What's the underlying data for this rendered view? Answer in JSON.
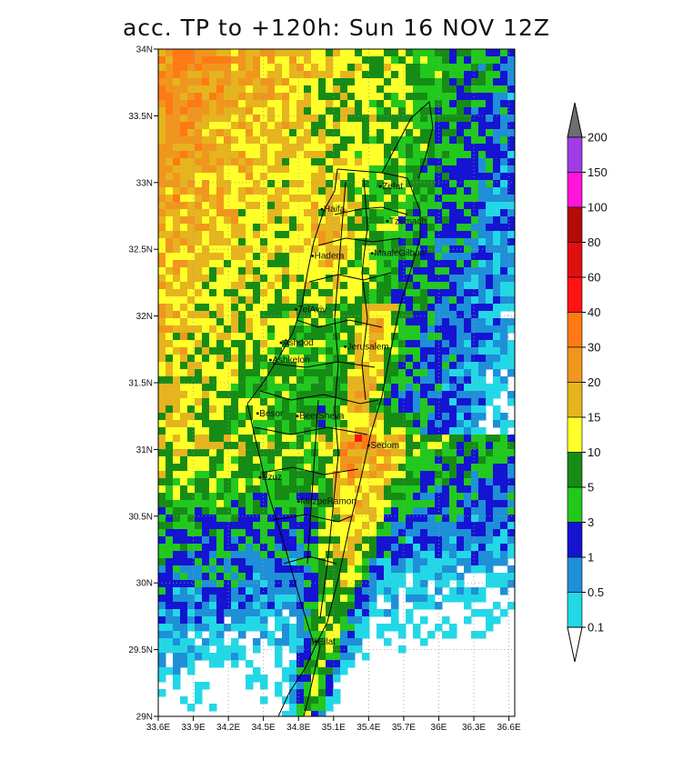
{
  "title": "acc. TP to +120h: Sun 16 NOV 12Z",
  "map": {
    "lon_range": [
      33.6,
      36.65
    ],
    "lat_range": [
      29.0,
      34.0
    ],
    "x_ticks": [
      {
        "value": 33.6,
        "label": "33.6E"
      },
      {
        "value": 33.9,
        "label": "33.9E"
      },
      {
        "value": 34.2,
        "label": "34.2E"
      },
      {
        "value": 34.5,
        "label": "34.5E"
      },
      {
        "value": 34.8,
        "label": "34.8E"
      },
      {
        "value": 35.1,
        "label": "35.1E"
      },
      {
        "value": 35.4,
        "label": "35.4E"
      },
      {
        "value": 35.7,
        "label": "35.7E"
      },
      {
        "value": 36.0,
        "label": "36E"
      },
      {
        "value": 36.3,
        "label": "36.3E"
      },
      {
        "value": 36.6,
        "label": "36.6E"
      }
    ],
    "y_ticks": [
      {
        "value": 34.0,
        "label": "34N"
      },
      {
        "value": 33.5,
        "label": "33.5N"
      },
      {
        "value": 33.0,
        "label": "33N"
      },
      {
        "value": 32.5,
        "label": "32.5N"
      },
      {
        "value": 32.0,
        "label": "32N"
      },
      {
        "value": 31.5,
        "label": "31.5N"
      },
      {
        "value": 31.0,
        "label": "31N"
      },
      {
        "value": 30.5,
        "label": "30.5N"
      },
      {
        "value": 30.0,
        "label": "30N"
      },
      {
        "value": 29.5,
        "label": "29.5N"
      },
      {
        "value": 29.0,
        "label": "29N"
      }
    ],
    "grid": "dotted"
  },
  "colorbar": {
    "levels": [
      "0.1",
      "0.5",
      "1",
      "3",
      "5",
      "10",
      "15",
      "20",
      "30",
      "40",
      "60",
      "80",
      "100",
      "150",
      "200"
    ],
    "colors": [
      "#ffffff",
      "#22d8e6",
      "#1f8fd8",
      "#1414d2",
      "#22c81e",
      "#168c16",
      "#ffff2a",
      "#e6b41e",
      "#f0961e",
      "#ff7a14",
      "#ff1414",
      "#e01010",
      "#b40a0a",
      "#ff14dc",
      "#a03ce6",
      "#6e6e6e"
    ]
  },
  "cities": [
    {
      "name": "Zefat",
      "lon": 35.5,
      "lat": 32.97
    },
    {
      "name": "Haifa",
      "lon": 35.0,
      "lat": 32.8
    },
    {
      "name": "Tzemach",
      "lon": 35.56,
      "lat": 32.71
    },
    {
      "name": "Hadera",
      "lon": 34.92,
      "lat": 32.45
    },
    {
      "name": "MaaleGilboa",
      "lon": 35.43,
      "lat": 32.47
    },
    {
      "name": "TelAviv",
      "lon": 34.78,
      "lat": 32.05
    },
    {
      "name": "Ashdod",
      "lon": 34.65,
      "lat": 31.8
    },
    {
      "name": "Jerusalem",
      "lon": 35.2,
      "lat": 31.77
    },
    {
      "name": "Ashkelon",
      "lon": 34.56,
      "lat": 31.67
    },
    {
      "name": "Besor",
      "lon": 34.45,
      "lat": 31.27
    },
    {
      "name": "BeerSheva",
      "lon": 34.79,
      "lat": 31.25
    },
    {
      "name": "Sedom",
      "lon": 35.4,
      "lat": 31.03
    },
    {
      "name": "Ezuz",
      "lon": 34.47,
      "lat": 30.79
    },
    {
      "name": "MitzpeRamon",
      "lon": 34.8,
      "lat": 30.61
    },
    {
      "name": "Eilat",
      "lon": 34.95,
      "lat": 29.56
    }
  ]
}
